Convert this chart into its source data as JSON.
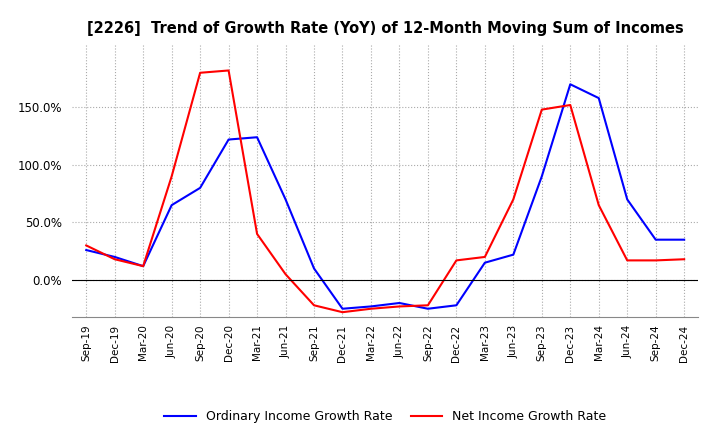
{
  "title": "[2226]  Trend of Growth Rate (YoY) of 12-Month Moving Sum of Incomes",
  "x_labels": [
    "Sep-19",
    "Dec-19",
    "Mar-20",
    "Jun-20",
    "Sep-20",
    "Dec-20",
    "Mar-21",
    "Jun-21",
    "Sep-21",
    "Dec-21",
    "Mar-22",
    "Jun-22",
    "Sep-22",
    "Dec-22",
    "Mar-23",
    "Jun-23",
    "Sep-23",
    "Dec-23",
    "Mar-24",
    "Jun-24",
    "Sep-24",
    "Dec-24"
  ],
  "ordinary_income": [
    0.26,
    0.2,
    0.12,
    0.65,
    0.8,
    1.22,
    1.24,
    0.7,
    0.1,
    -0.25,
    -0.23,
    -0.2,
    -0.25,
    -0.22,
    0.15,
    0.22,
    0.9,
    1.7,
    1.58,
    0.7,
    0.35,
    0.35
  ],
  "net_income": [
    0.3,
    0.18,
    0.12,
    0.9,
    1.8,
    1.82,
    0.4,
    0.05,
    -0.22,
    -0.28,
    -0.25,
    -0.23,
    -0.22,
    0.17,
    0.2,
    0.7,
    1.48,
    1.52,
    0.65,
    0.17,
    0.17,
    0.18
  ],
  "blue_color": "#0000FF",
  "red_color": "#FF0000",
  "background_color": "#FFFFFF",
  "grid_color": "#AAAAAA",
  "ylim": [
    -0.32,
    2.05
  ],
  "yticks": [
    0.0,
    0.5,
    1.0,
    1.5
  ],
  "legend_labels": [
    "Ordinary Income Growth Rate",
    "Net Income Growth Rate"
  ]
}
